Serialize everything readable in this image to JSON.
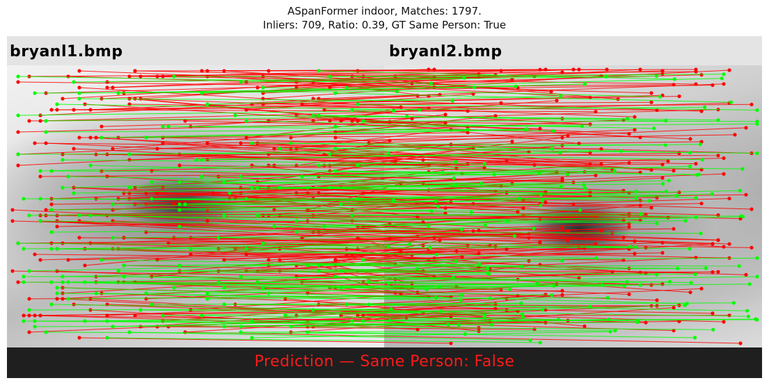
{
  "figure": {
    "title_line1": "ASpanFormer indoor, Matches: 1797.",
    "title_line2": "Inliers: 709, Ratio: 0.39, GT Same Person: True"
  },
  "images": {
    "left_filename": "bryanl1.bmp",
    "right_filename": "bryanl2.bmp"
  },
  "prediction": {
    "text": "Prediction — Same Person: False"
  },
  "matches": {
    "total": 1797,
    "inliers": 709,
    "ratio": 0.39,
    "inlier_color": "#00ff00",
    "outlier_color": "#ff0000"
  },
  "colors": {
    "header_background": "#e4e4e4",
    "footer_background": "#1f1f1f",
    "prediction_text": "#ff1a1a"
  }
}
